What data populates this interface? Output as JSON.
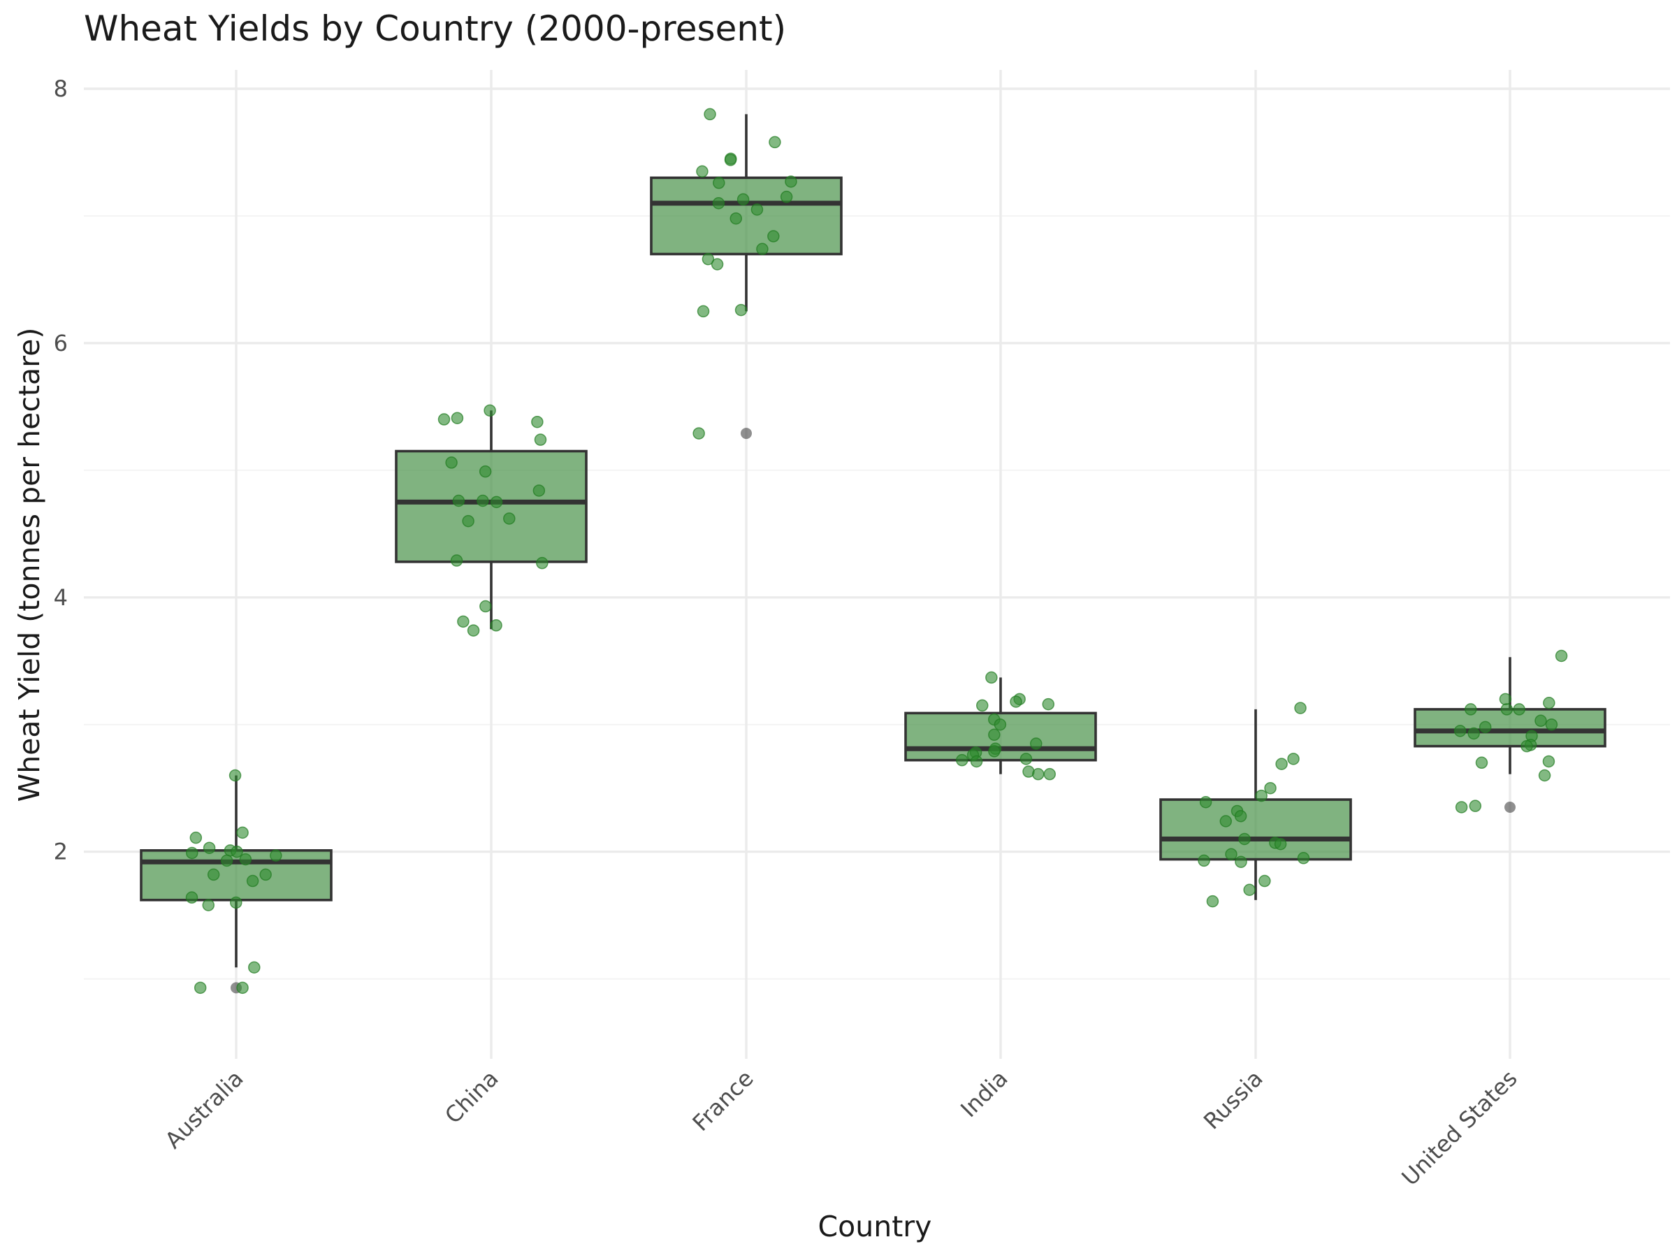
{
  "chart_data": {
    "type": "box",
    "title": "Wheat Yields by Country (2000-present)",
    "xlabel": "Country",
    "ylabel": "Wheat Yield (tonnes per hectare)",
    "ylim": [
      0.62,
      8.3
    ],
    "y_ticks": [
      2,
      4,
      6,
      8
    ],
    "grid": true,
    "categories": [
      "Australia",
      "China",
      "France",
      "India",
      "Russia",
      "United States"
    ],
    "colors": {
      "box_fill": "#4a934a",
      "points": "#2e8b2e",
      "outline": "#333333",
      "outlier": "#333333",
      "grid": "#ebebeb"
    },
    "boxes": [
      {
        "category": "Australia",
        "q1": 1.62,
        "median": 1.92,
        "q3": 2.01,
        "whisker_low": 1.09,
        "whisker_high": 2.6,
        "outliers": [
          0.93
        ]
      },
      {
        "category": "China",
        "q1": 4.28,
        "median": 4.75,
        "q3": 5.15,
        "whisker_low": 3.75,
        "whisker_high": 5.47,
        "outliers": []
      },
      {
        "category": "France",
        "q1": 6.7,
        "median": 7.1,
        "q3": 7.3,
        "whisker_low": 6.25,
        "whisker_high": 7.8,
        "outliers": [
          5.29
        ]
      },
      {
        "category": "India",
        "q1": 2.72,
        "median": 2.81,
        "q3": 3.09,
        "whisker_low": 2.61,
        "whisker_high": 3.37,
        "outliers": []
      },
      {
        "category": "Russia",
        "q1": 1.94,
        "median": 2.1,
        "q3": 2.41,
        "whisker_low": 1.62,
        "whisker_high": 3.12,
        "outliers": []
      },
      {
        "category": "United States",
        "q1": 2.83,
        "median": 2.95,
        "q3": 3.12,
        "whisker_low": 2.61,
        "whisker_high": 3.53,
        "outliers": [
          2.35
        ]
      }
    ],
    "points": [
      {
        "category": "Australia",
        "values": [
          2.6,
          2.15,
          2.11,
          2.03,
          2.01,
          2.0,
          1.99,
          1.97,
          1.94,
          1.93,
          1.82,
          1.82,
          1.77,
          1.64,
          1.6,
          1.58,
          1.09,
          0.93,
          0.93
        ]
      },
      {
        "category": "China",
        "values": [
          5.47,
          5.41,
          5.4,
          5.38,
          5.24,
          5.06,
          4.99,
          4.84,
          4.76,
          4.76,
          4.75,
          4.62,
          4.6,
          4.29,
          4.27,
          3.93,
          3.81,
          3.78,
          3.74
        ]
      },
      {
        "category": "France",
        "values": [
          7.8,
          7.58,
          7.45,
          7.44,
          7.35,
          7.27,
          7.26,
          7.15,
          7.13,
          7.1,
          7.05,
          6.98,
          6.84,
          6.74,
          6.66,
          6.62,
          6.26,
          6.25,
          5.29
        ]
      },
      {
        "category": "India",
        "values": [
          3.37,
          3.2,
          3.18,
          3.16,
          3.15,
          3.04,
          3.0,
          2.92,
          2.85,
          2.81,
          2.79,
          2.78,
          2.76,
          2.73,
          2.72,
          2.71,
          2.63,
          2.61,
          2.61
        ]
      },
      {
        "category": "Russia",
        "values": [
          3.13,
          2.73,
          2.69,
          2.5,
          2.44,
          2.39,
          2.32,
          2.28,
          2.24,
          2.1,
          2.07,
          2.06,
          1.98,
          1.95,
          1.93,
          1.92,
          1.77,
          1.7,
          1.61
        ]
      },
      {
        "category": "United States",
        "values": [
          3.54,
          3.2,
          3.17,
          3.12,
          3.12,
          3.12,
          3.03,
          3.0,
          2.98,
          2.95,
          2.93,
          2.91,
          2.84,
          2.83,
          2.71,
          2.7,
          2.6,
          2.36,
          2.35
        ]
      }
    ]
  }
}
